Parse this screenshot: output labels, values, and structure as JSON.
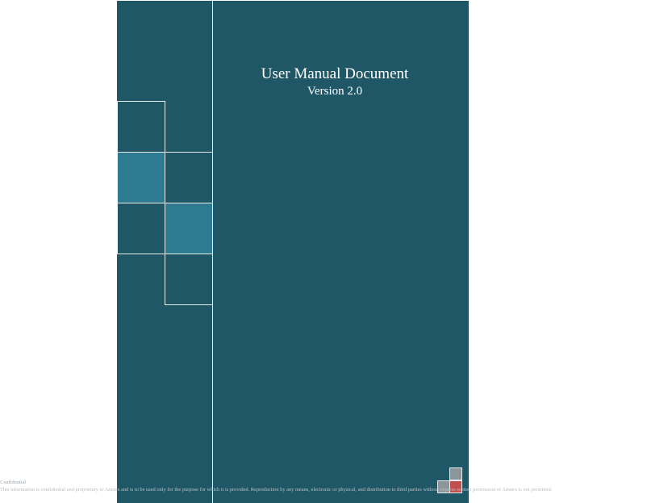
{
  "document": {
    "title": "User Manual Document",
    "version": "Version 2.0"
  },
  "footer": {
    "label": "Confidential",
    "notice": "This information is confidential and proprietary to Amnex and is to be used only for the purpose for which it is provided. Reproduction by any means, electronic or physical, and distribution to third parties without express written permission of Amnex is not permitted."
  },
  "colors": {
    "cover": "#205767",
    "accent_tile": "#2e7a91",
    "logo_gray": "#8c9599",
    "logo_red": "#c0504d",
    "line": "#e8eef0"
  }
}
